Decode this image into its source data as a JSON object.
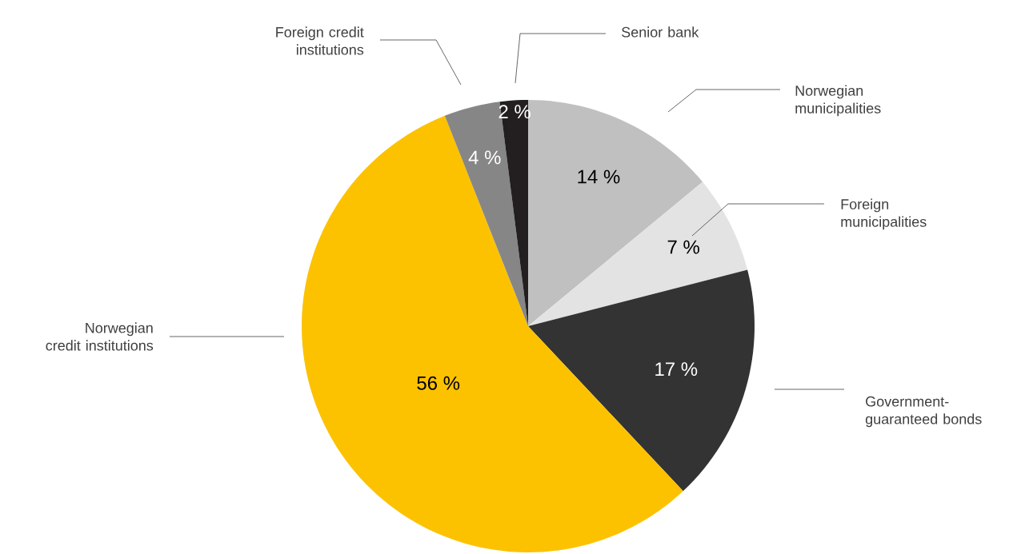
{
  "chart_data": {
    "type": "pie",
    "categories": [
      "Norwegian municipalities",
      "Foreign municipalities",
      "Government-guaranteed bonds",
      "Norwegian credit institutions",
      "Foreign credit institutions",
      "Senior bank"
    ],
    "values": [
      14,
      7,
      17,
      56,
      4,
      2
    ],
    "colors": [
      "#c0c0c0",
      "#e3e3e3",
      "#333333",
      "#fcc200",
      "#868686",
      "#231f20"
    ],
    "value_labels": [
      "14 %",
      "7 %",
      "17 %",
      "56 %",
      "4 %",
      "2 %"
    ]
  }
}
